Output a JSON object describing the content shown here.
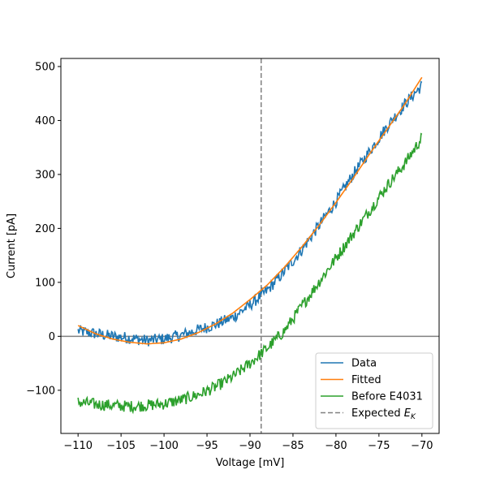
{
  "chart_data": {
    "type": "line",
    "xlabel": "Voltage [mV]",
    "ylabel": "Current [pA]",
    "xlim": [
      -112,
      -68
    ],
    "ylim": [
      -180,
      515
    ],
    "xticks": [
      -110,
      -105,
      -100,
      -95,
      -90,
      -85,
      -80,
      -75,
      -70
    ],
    "yticks": [
      -100,
      0,
      100,
      200,
      300,
      400,
      500
    ],
    "xtick_labels": [
      "−110",
      "−105",
      "−100",
      "−95",
      "−90",
      "−85",
      "−80",
      "−75",
      "−70"
    ],
    "ytick_labels": [
      "−100",
      "0",
      "100",
      "200",
      "300",
      "400",
      "500"
    ],
    "grid": false,
    "legend_position": "lower-right",
    "horizontal_line": {
      "y": 0,
      "color": "#808080"
    },
    "vertical_line": {
      "x": -88.7,
      "color": "#808080",
      "style": "dashed"
    },
    "series": [
      {
        "name": "Data",
        "color": "#1f77b4",
        "noisy": true,
        "x": [
          -110,
          -108,
          -106,
          -104,
          -102,
          -100,
          -98,
          -96,
          -94,
          -92,
          -90,
          -88,
          -86,
          -84,
          -82,
          -80,
          -78,
          -76,
          -74,
          -72,
          -70
        ],
        "y": [
          10,
          5,
          0,
          -3,
          -8,
          -5,
          2,
          12,
          22,
          35,
          58,
          85,
          120,
          160,
          205,
          250,
          300,
          345,
          390,
          430,
          465
        ]
      },
      {
        "name": "Fitted",
        "color": "#ff7f0e",
        "noisy": false,
        "x": [
          -110,
          -108,
          -106,
          -104,
          -102,
          -100,
          -98,
          -96,
          -94,
          -92,
          -90,
          -88,
          -86,
          -84,
          -82,
          -80,
          -78,
          -76,
          -74,
          -72,
          -70
        ],
        "y": [
          20,
          5,
          -5,
          -11,
          -14,
          -12,
          -5,
          7,
          23,
          43,
          68,
          95,
          128,
          165,
          205,
          248,
          293,
          340,
          385,
          430,
          480
        ]
      },
      {
        "name": "Before E4031",
        "color": "#2ca02c",
        "noisy": true,
        "x": [
          -110,
          -108,
          -106,
          -104,
          -102,
          -100,
          -98,
          -96,
          -94,
          -92,
          -90,
          -88,
          -86,
          -84,
          -82,
          -80,
          -78,
          -76,
          -74,
          -72,
          -70
        ],
        "y": [
          -122,
          -126,
          -128,
          -130,
          -128,
          -125,
          -118,
          -108,
          -94,
          -75,
          -50,
          -22,
          10,
          55,
          100,
          145,
          190,
          235,
          280,
          320,
          368
        ]
      }
    ],
    "legend": [
      {
        "label": "Data",
        "color": "#1f77b4",
        "style": "solid"
      },
      {
        "label": "Fitted",
        "color": "#ff7f0e",
        "style": "solid"
      },
      {
        "label": "Before E4031",
        "color": "#2ca02c",
        "style": "solid"
      },
      {
        "label": "Expected ",
        "subscript_base": "E",
        "subscript": "K",
        "color": "#808080",
        "style": "dashed"
      }
    ]
  }
}
